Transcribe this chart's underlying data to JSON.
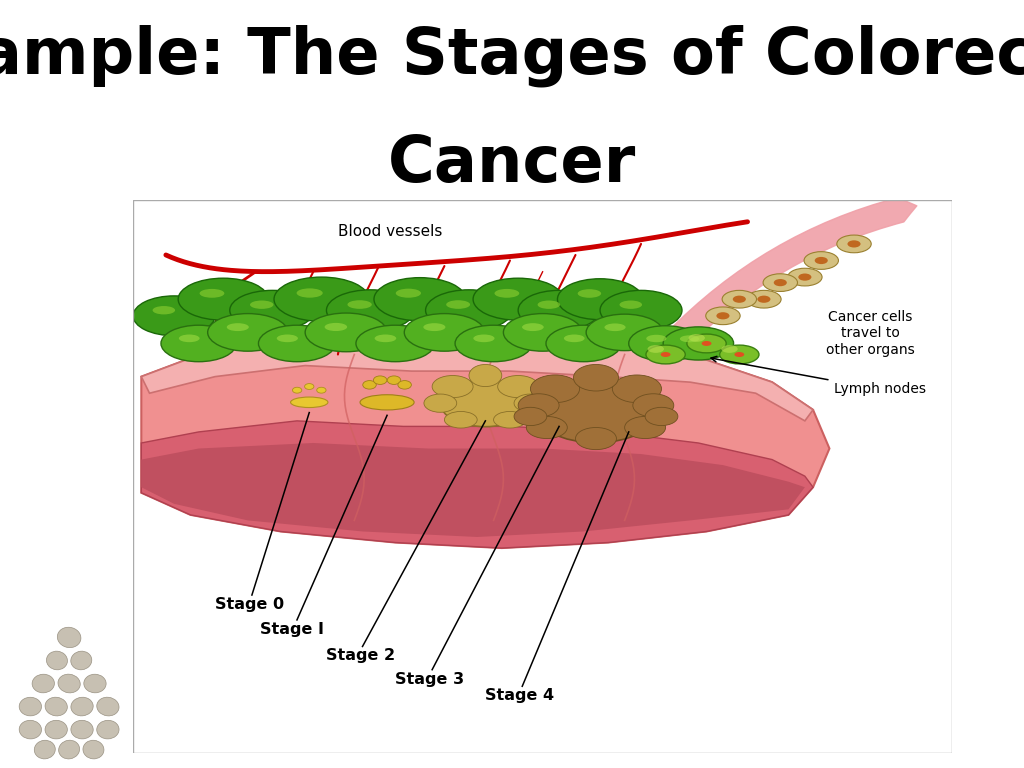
{
  "title_line1": "Example: The Stages of Colorectal",
  "title_line2": "Cancer",
  "title_fontsize": 46,
  "title_fontweight": "bold",
  "background_color": "#ffffff",
  "label_blood_vessels": "Blood vessels",
  "label_cancer_cells": "Cancer cells\ntravel to\nother organs",
  "label_lymph_nodes": "Lymph nodes",
  "stage_labels": [
    "Stage 0",
    "Stage I",
    "Stage 2",
    "Stage 3",
    "Stage 4"
  ],
  "colon_outer": "#f08888",
  "colon_wall": "#e07070",
  "colon_lumen": "#c85060",
  "colon_mucosa": "#f4a0a0",
  "cell_green_dark": "#2d8a10",
  "cell_green_mid": "#4db020",
  "cell_green_light": "#80cc30",
  "blood_vessel_color": "#cc0000",
  "tumor_yellow": "#d4a020",
  "tumor_brown": "#9a6830",
  "arrow_pink": "#f0a0a8",
  "cancer_cell_fill": "#d4c080",
  "cancer_cell_dot": "#c06820"
}
